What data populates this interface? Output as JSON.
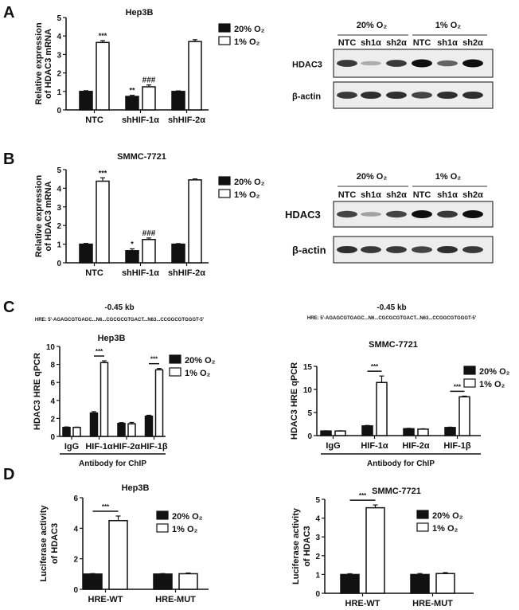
{
  "panel_labels": [
    "A",
    "B",
    "C",
    "D"
  ],
  "legend": {
    "normoxia": "20% O₂",
    "hypoxia": "1% O₂"
  },
  "colors": {
    "normoxia_fill": "#111111",
    "hypoxia_fill": "#ffffff",
    "stroke": "#111111"
  },
  "hre_info": {
    "position": "-0.45 kb",
    "sequence": "HRE: 5'-AGAGCGTGAGC...N6...CGCGCGTGACT...N63...CCGGCGTGGGT-5'"
  },
  "chart_data": [
    {
      "id": "A",
      "type": "bar",
      "title": "Hep3B",
      "ylabel": "Relative expression of HDAC3 mRNA",
      "ylabel_lines": [
        "Relative expression",
        "of HDAC3 mRNA"
      ],
      "ylim": [
        0,
        5
      ],
      "yticks": [
        "0",
        "1",
        "2",
        "3",
        "4",
        "5"
      ],
      "legend_position": "right",
      "categories": [
        "NTC",
        "shHIF-1α",
        "shHIF-2α"
      ],
      "series": [
        {
          "name": "20% O₂",
          "values": [
            1.0,
            0.73,
            1.0
          ],
          "errors": [
            0.04,
            0.06,
            0.03
          ]
        },
        {
          "name": "1% O₂",
          "values": [
            3.65,
            1.25,
            3.7
          ],
          "errors": [
            0.1,
            0.1,
            0.1
          ]
        }
      ],
      "annotations": [
        {
          "category": "NTC",
          "series": 1,
          "text": "***"
        },
        {
          "category": "shHIF-1α",
          "series": 0,
          "text": "**"
        },
        {
          "category": "shHIF-1α",
          "series": 1,
          "text": "###"
        }
      ]
    },
    {
      "id": "B",
      "type": "bar",
      "title": "SMMC-7721",
      "ylabel": "Relative expression of HDAC3 mRNA",
      "ylabel_lines": [
        "Relative expression",
        "of HDAC3 mRNA"
      ],
      "ylim": [
        0,
        5
      ],
      "yticks": [
        "0",
        "1",
        "2",
        "3",
        "4",
        "5"
      ],
      "legend_position": "right",
      "categories": [
        "NTC",
        "shHIF-1α",
        "shHIF-2α"
      ],
      "series": [
        {
          "name": "20% O₂",
          "values": [
            1.0,
            0.65,
            1.0
          ],
          "errors": [
            0.04,
            0.1,
            0.03
          ]
        },
        {
          "name": "1% O₂",
          "values": [
            4.38,
            1.25,
            4.45
          ],
          "errors": [
            0.18,
            0.08,
            0.05
          ]
        }
      ],
      "annotations": [
        {
          "category": "NTC",
          "series": 1,
          "text": "***"
        },
        {
          "category": "shHIF-1α",
          "series": 0,
          "text": "*"
        },
        {
          "category": "shHIF-1α",
          "series": 1,
          "text": "###"
        }
      ]
    },
    {
      "id": "C-left",
      "type": "bar",
      "title": "Hep3B",
      "ylabel": "HDAC3 HRE qPCR",
      "ylabel_lines": [
        "HDAC3 HRE qPCR"
      ],
      "xlabel": "Antibody for ChIP",
      "ylim": [
        0,
        10
      ],
      "yticks": [
        "0",
        "2",
        "4",
        "6",
        "8",
        "10"
      ],
      "legend_position": "right",
      "categories": [
        "IgG",
        "HIF-1α",
        "HIF-2α",
        "HIF-1β"
      ],
      "series": [
        {
          "name": "20% O₂",
          "values": [
            1.0,
            2.6,
            1.45,
            2.25
          ],
          "errors": [
            0.05,
            0.15,
            0.08,
            0.1
          ]
        },
        {
          "name": "1% O₂",
          "values": [
            1.0,
            8.2,
            1.4,
            7.4
          ],
          "errors": [
            0.03,
            0.2,
            0.15,
            0.15
          ]
        }
      ],
      "brackets": [
        {
          "category": "HIF-1α",
          "text": "***"
        },
        {
          "category": "HIF-1β",
          "text": "***"
        }
      ]
    },
    {
      "id": "C-right",
      "type": "bar",
      "title": "SMMC-7721",
      "ylabel": "HDAC3 HRE qPCR",
      "ylabel_lines": [
        "HDAC3 HRE qPCR"
      ],
      "xlabel": "Antibody for ChIP",
      "ylim": [
        0,
        15
      ],
      "yticks": [
        "0",
        "5",
        "10",
        "15"
      ],
      "legend_position": "right",
      "categories": [
        "IgG",
        "HIF-1α",
        "HIF-2α",
        "HIF-1β"
      ],
      "series": [
        {
          "name": "20% O₂",
          "values": [
            1.0,
            2.1,
            1.5,
            1.75
          ],
          "errors": [
            0.05,
            0.1,
            0.08,
            0.08
          ]
        },
        {
          "name": "1% O₂",
          "values": [
            1.0,
            11.5,
            1.4,
            8.4
          ],
          "errors": [
            0.05,
            1.4,
            0.08,
            0.15
          ]
        }
      ],
      "brackets": [
        {
          "category": "HIF-1α",
          "text": "***"
        },
        {
          "category": "HIF-1β",
          "text": "***"
        }
      ]
    },
    {
      "id": "D-left",
      "type": "bar",
      "title": "Hep3B",
      "ylabel": "Luciferase activity of HDAC3",
      "ylabel_lines": [
        "Luciferase activity",
        "of HDAC3"
      ],
      "ylim": [
        0,
        6
      ],
      "yticks": [
        "0",
        "2",
        "4",
        "6"
      ],
      "legend_position": "top-right",
      "categories": [
        "HRE-WT",
        "HRE-MUT"
      ],
      "series": [
        {
          "name": "20% O₂",
          "values": [
            1.0,
            1.0
          ],
          "errors": [
            0.03,
            0.03
          ]
        },
        {
          "name": "1% O₂",
          "values": [
            4.5,
            1.02
          ],
          "errors": [
            0.3,
            0.05
          ]
        }
      ],
      "brackets": [
        {
          "category": "HRE-WT",
          "text": "***"
        }
      ]
    },
    {
      "id": "D-right",
      "type": "bar",
      "title": "SMMC-7721",
      "ylabel": "Luciferase activity of HDAC3",
      "ylabel_lines": [
        "Luciferase activity",
        "of HDAC3"
      ],
      "ylim": [
        0,
        5
      ],
      "yticks": [
        "0",
        "1",
        "2",
        "3",
        "4",
        "5"
      ],
      "legend_position": "top-right",
      "categories": [
        "HRE-WT",
        "HRE-MUT"
      ],
      "series": [
        {
          "name": "20% O₂",
          "values": [
            1.0,
            1.0
          ],
          "errors": [
            0.04,
            0.05
          ]
        },
        {
          "name": "1% O₂",
          "values": [
            4.55,
            1.05
          ],
          "errors": [
            0.15,
            0.05
          ]
        }
      ],
      "brackets": [
        {
          "category": "HRE-WT",
          "text": "***"
        }
      ]
    }
  ],
  "blots": [
    {
      "id": "A",
      "groups": [
        "20% O₂",
        "1% O₂"
      ],
      "lanes": [
        "NTC",
        "sh1α",
        "sh2α",
        "NTC",
        "sh1α",
        "sh2α"
      ],
      "rows": [
        {
          "label": "HDAC3",
          "intensity": [
            0.8,
            0.25,
            0.8,
            1.0,
            0.6,
            1.0
          ]
        },
        {
          "label": "β-actin",
          "intensity": [
            0.8,
            0.85,
            0.85,
            0.75,
            0.85,
            0.85
          ]
        }
      ]
    },
    {
      "id": "B",
      "groups": [
        "20% O₂",
        "1% O₂"
      ],
      "lanes": [
        "NTC",
        "sh1α",
        "sh2α",
        "NTC",
        "sh1α",
        "sh2α"
      ],
      "rows": [
        {
          "label": "HDAC3",
          "intensity": [
            0.75,
            0.3,
            0.75,
            1.0,
            0.8,
            1.0
          ]
        },
        {
          "label": "β-actin",
          "intensity": [
            0.85,
            0.8,
            0.8,
            0.75,
            0.85,
            0.8
          ]
        }
      ]
    }
  ]
}
